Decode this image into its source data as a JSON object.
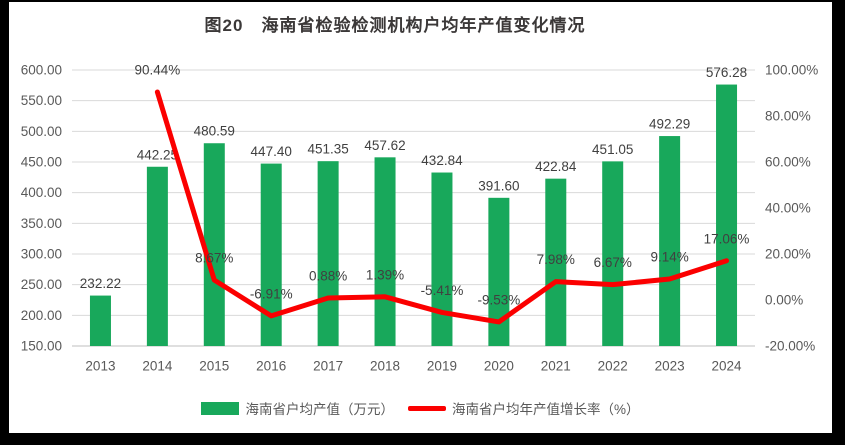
{
  "chart_data": {
    "type": "combo-bar-line",
    "title": "图20　海南省检验检测机构户均年产值变化情况",
    "categories": [
      "2013",
      "2014",
      "2015",
      "2016",
      "2017",
      "2018",
      "2019",
      "2020",
      "2021",
      "2022",
      "2023",
      "2024"
    ],
    "series": [
      {
        "name": "海南省户均产值（万元）",
        "type": "bar",
        "axis": "left",
        "color": "#18A85B",
        "values": [
          232.22,
          442.25,
          480.59,
          447.4,
          451.35,
          457.62,
          432.84,
          391.6,
          422.84,
          451.05,
          492.29,
          576.28
        ],
        "labels": [
          "232.22",
          "442.25",
          "480.59",
          "447.40",
          "451.35",
          "457.62",
          "432.84",
          "391.60",
          "422.84",
          "451.05",
          "492.29",
          "576.28"
        ]
      },
      {
        "name": "海南省户均年产值增长率（%）",
        "type": "line",
        "axis": "right",
        "color": "#FB0000",
        "values": [
          null,
          90.44,
          8.67,
          -6.91,
          0.88,
          1.39,
          -5.41,
          -9.53,
          7.98,
          6.67,
          9.14,
          17.06
        ],
        "labels": [
          "",
          "90.44%",
          "8.67%",
          "-6.91%",
          "0.88%",
          "1.39%",
          "-5.41%",
          "-9.53%",
          "7.98%",
          "6.67%",
          "9.14%",
          "17.06%"
        ]
      }
    ],
    "left_axis": {
      "min": 150,
      "max": 600,
      "step": 50,
      "tick_values": [
        600,
        550,
        500,
        450,
        400,
        350,
        300,
        250,
        200,
        150
      ],
      "tick_labels": [
        "600.00",
        "550.00",
        "500.00",
        "450.00",
        "400.00",
        "350.00",
        "300.00",
        "250.00",
        "200.00",
        "150.00"
      ]
    },
    "right_axis": {
      "min": -20,
      "max": 100,
      "step": 20,
      "tick_values": [
        100,
        80,
        60,
        40,
        20,
        0,
        -20
      ],
      "tick_labels": [
        "100.00%",
        "80.00%",
        "60.00%",
        "40.00%",
        "20.00%",
        "0.00%",
        "-20.00%"
      ]
    },
    "grid": true,
    "legend_position": "bottom",
    "colors": {
      "grid": "#D9D9D9",
      "axis_line": "#BFBFBF",
      "tick_text": "#595959",
      "data_label": "#404040",
      "title_text": "#3B3838",
      "frame": "#000000",
      "background": "#FFFFFF"
    }
  }
}
